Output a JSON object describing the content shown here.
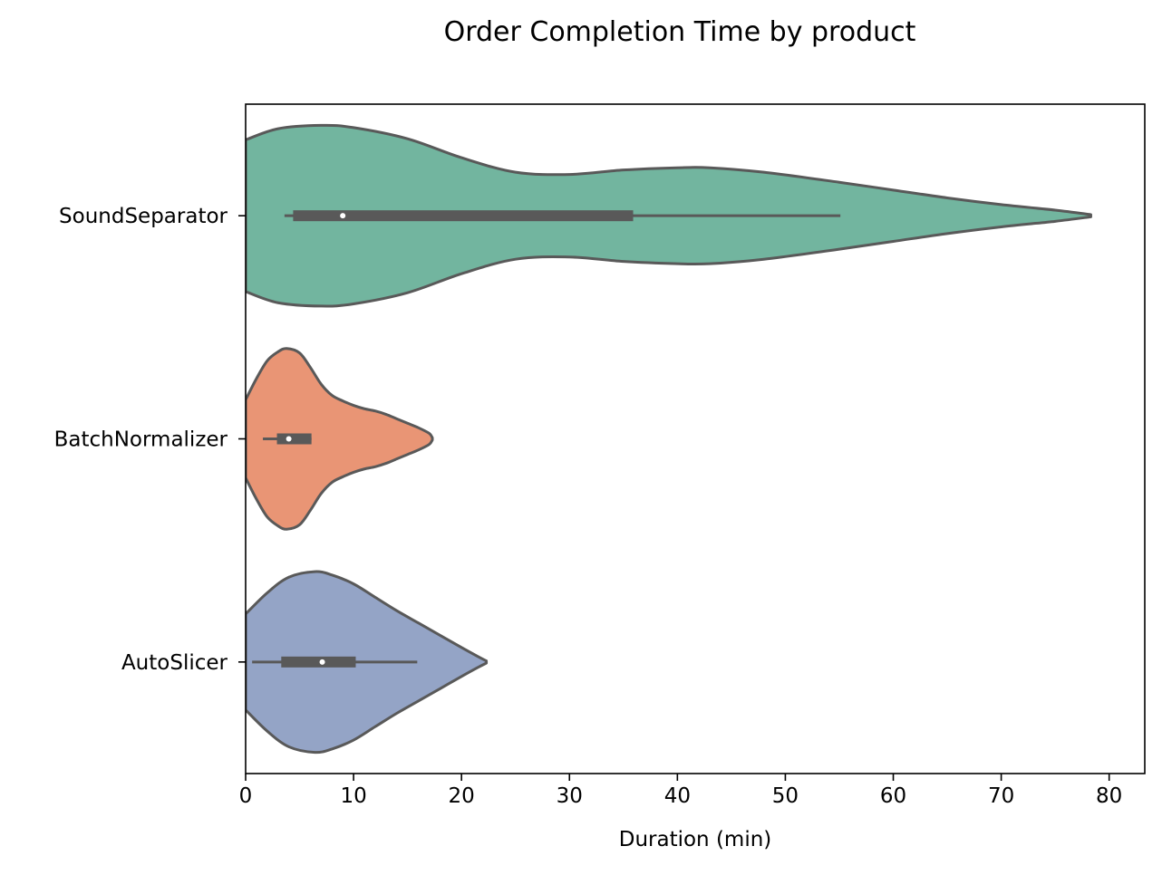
{
  "chart_data": {
    "type": "violin",
    "orientation": "horizontal",
    "title": "Order Completion Time by product",
    "xlabel": "Duration (min)",
    "ylabel": "",
    "xlim": [
      0,
      83.3
    ],
    "xticks": [
      0,
      10,
      20,
      30,
      40,
      50,
      60,
      70,
      80
    ],
    "grid": false,
    "categories": [
      "SoundSeparator",
      "BatchNormalizer",
      "AutoSlicer"
    ],
    "series": [
      {
        "category": "SoundSeparator",
        "color": "#72b59f",
        "density_x": [
          0,
          3,
          7,
          10,
          15,
          20,
          25,
          30,
          35,
          40,
          43,
          48,
          55,
          60,
          65,
          70,
          75,
          78.3
        ],
        "density_width": [
          0.68,
          0.78,
          0.81,
          0.79,
          0.69,
          0.52,
          0.39,
          0.37,
          0.41,
          0.43,
          0.43,
          0.39,
          0.3,
          0.23,
          0.16,
          0.1,
          0.05,
          0.01
        ],
        "min": 3.6,
        "q1": 4.4,
        "median": 9.0,
        "q3": 35.9,
        "whisker_low": 3.6,
        "whisker_high": 55.1
      },
      {
        "category": "BatchNormalizer",
        "color": "#e99575",
        "density_x": [
          0,
          1,
          2,
          3,
          3.8,
          5,
          6,
          7,
          8,
          9,
          10,
          11,
          12,
          13,
          14,
          15,
          16,
          17,
          17.3
        ],
        "density_width": [
          0.35,
          0.54,
          0.7,
          0.78,
          0.81,
          0.77,
          0.64,
          0.49,
          0.39,
          0.34,
          0.3,
          0.27,
          0.25,
          0.22,
          0.18,
          0.14,
          0.1,
          0.05,
          0.01
        ],
        "min": 1.6,
        "q1": 2.9,
        "median": 4.0,
        "q3": 6.1,
        "whisker_low": 1.6,
        "whisker_high": 6.1
      },
      {
        "category": "AutoSlicer",
        "color": "#94a4c6",
        "density_x": [
          0,
          2,
          4,
          6.4,
          8,
          10,
          12,
          14,
          16,
          18,
          20,
          21.5,
          22.3
        ],
        "density_width": [
          0.43,
          0.62,
          0.76,
          0.81,
          0.78,
          0.7,
          0.58,
          0.46,
          0.35,
          0.24,
          0.13,
          0.05,
          0.01
        ],
        "min": 0.6,
        "q1": 3.3,
        "median": 7.1,
        "q3": 10.2,
        "whisker_low": 0.6,
        "whisker_high": 15.9
      }
    ]
  }
}
